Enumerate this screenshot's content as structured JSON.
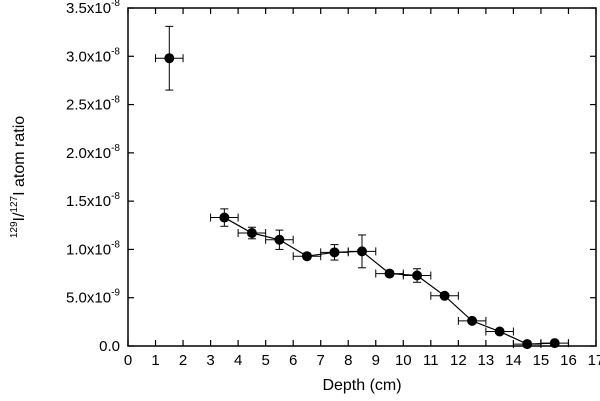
{
  "chart_data": {
    "type": "scatter",
    "title": "",
    "xlabel": "Depth (cm)",
    "ylabel_parts": [
      {
        "text": "129",
        "sup": true
      },
      {
        "text": "I/",
        "sup": false
      },
      {
        "text": "127",
        "sup": true
      },
      {
        "text": "I atom ratio",
        "sup": false
      }
    ],
    "xlim": [
      0,
      17
    ],
    "ylim": [
      0,
      3.5e-08
    ],
    "grid": false,
    "legend": "none",
    "colors": {
      "marker": "#000000",
      "line": "#000000",
      "axis": "#000000"
    },
    "x_ticks": [
      0,
      1,
      2,
      3,
      4,
      5,
      6,
      7,
      8,
      9,
      10,
      11,
      12,
      13,
      14,
      15,
      16,
      17
    ],
    "x_tick_labels": [
      "0",
      "1",
      "2",
      "3",
      "4",
      "5",
      "6",
      "7",
      "8",
      "9",
      "10",
      "11",
      "12",
      "13",
      "14",
      "15",
      "16",
      "17"
    ],
    "y_ticks": [
      0,
      5e-09,
      1e-08,
      1.5e-08,
      2e-08,
      2.5e-08,
      3e-08,
      3.5e-08
    ],
    "y_tick_labels": [
      {
        "mantissa": "0.0",
        "exp": ""
      },
      {
        "mantissa": "5.0x10",
        "exp": "-9"
      },
      {
        "mantissa": "1.0x10",
        "exp": "-8"
      },
      {
        "mantissa": "1.5x10",
        "exp": "-8"
      },
      {
        "mantissa": "2.0x10",
        "exp": "-8"
      },
      {
        "mantissa": "2.5x10",
        "exp": "-8"
      },
      {
        "mantissa": "3.0x10",
        "exp": "-8"
      },
      {
        "mantissa": "3.5x10",
        "exp": "-8"
      }
    ],
    "series": [
      {
        "connected": false,
        "points": [
          {
            "x": 1.5,
            "y": 2.98e-08,
            "xerr": 0.5,
            "yerr": 3.3e-09
          }
        ]
      },
      {
        "connected": true,
        "points": [
          {
            "x": 3.5,
            "y": 1.33e-08,
            "xerr": 0.5,
            "yerr": 9e-10
          },
          {
            "x": 4.5,
            "y": 1.17e-08,
            "xerr": 0.5,
            "yerr": 6e-10
          },
          {
            "x": 5.5,
            "y": 1.1e-08,
            "xerr": 0.5,
            "yerr": 1e-09
          },
          {
            "x": 6.5,
            "y": 9.3e-09,
            "xerr": 0.5,
            "yerr": 3e-10
          },
          {
            "x": 7.5,
            "y": 9.7e-09,
            "xerr": 0.5,
            "yerr": 8e-10
          },
          {
            "x": 8.5,
            "y": 9.8e-09,
            "xerr": 0.5,
            "yerr": 1.7e-09
          },
          {
            "x": 9.5,
            "y": 7.5e-09,
            "xerr": 0.5,
            "yerr": 3e-10
          },
          {
            "x": 10.5,
            "y": 7.3e-09,
            "xerr": 0.5,
            "yerr": 7e-10
          },
          {
            "x": 11.5,
            "y": 5.2e-09,
            "xerr": 0.5,
            "yerr": 2e-10
          },
          {
            "x": 12.5,
            "y": 2.6e-09,
            "xerr": 0.5,
            "yerr": 2e-10
          },
          {
            "x": 13.5,
            "y": 1.5e-09,
            "xerr": 0.5,
            "yerr": 2e-10
          },
          {
            "x": 14.5,
            "y": 2e-10,
            "xerr": 0.5,
            "yerr": 1e-10
          },
          {
            "x": 15.5,
            "y": 3e-10,
            "xerr": 0.5,
            "yerr": 1e-10
          }
        ]
      }
    ]
  }
}
